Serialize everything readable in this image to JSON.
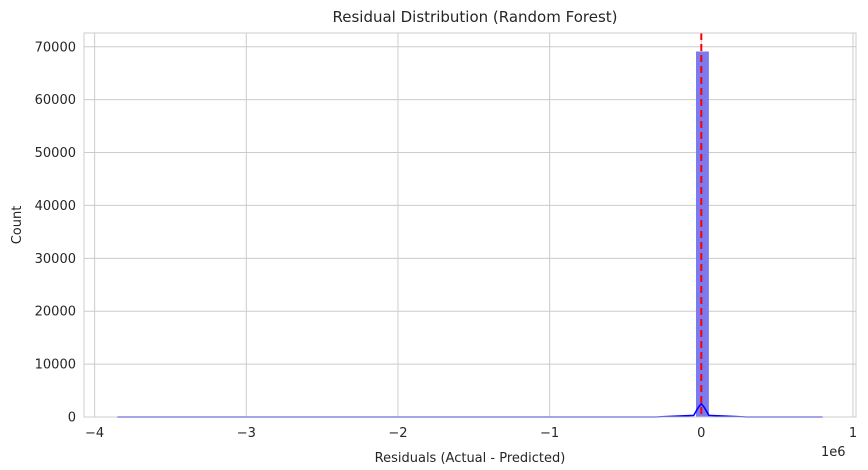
{
  "chart_data": {
    "type": "histogram",
    "title": "Residual Distribution (Random Forest)",
    "xlabel": "Residuals (Actual - Predicted)",
    "ylabel": "Count",
    "x_offset_label": "1e6",
    "x_unit_scale": 1000000,
    "xlim": [
      -4.07,
      1.02
    ],
    "ylim": [
      0,
      72600
    ],
    "x_ticks": [
      -4,
      -3,
      -2,
      -1,
      0,
      1
    ],
    "x_tick_labels": [
      "−4",
      "−3",
      "−2",
      "−1",
      "0",
      "1"
    ],
    "y_ticks": [
      0,
      10000,
      20000,
      30000,
      40000,
      50000,
      60000,
      70000
    ],
    "y_tick_labels": [
      "0",
      "10000",
      "20000",
      "30000",
      "40000",
      "50000",
      "60000",
      "70000"
    ],
    "grid": true,
    "bars": [
      {
        "x0": -0.035,
        "x1": 0.05,
        "count": 69100
      }
    ],
    "kde": {
      "x": [
        -3.85,
        -3.0,
        -2.0,
        -1.0,
        -0.3,
        -0.05,
        -0.02,
        0.0,
        0.02,
        0.05,
        0.3,
        0.8
      ],
      "y": [
        0,
        0,
        0,
        0,
        0,
        300,
        1800,
        2500,
        1800,
        300,
        0,
        0
      ]
    },
    "reference_line": {
      "x": 0,
      "style": "dashed"
    },
    "colors": {
      "bar": "#7b7bef",
      "kde": "#0000ff",
      "reference_line": "#ff0000",
      "grid": "#cccccc"
    }
  }
}
